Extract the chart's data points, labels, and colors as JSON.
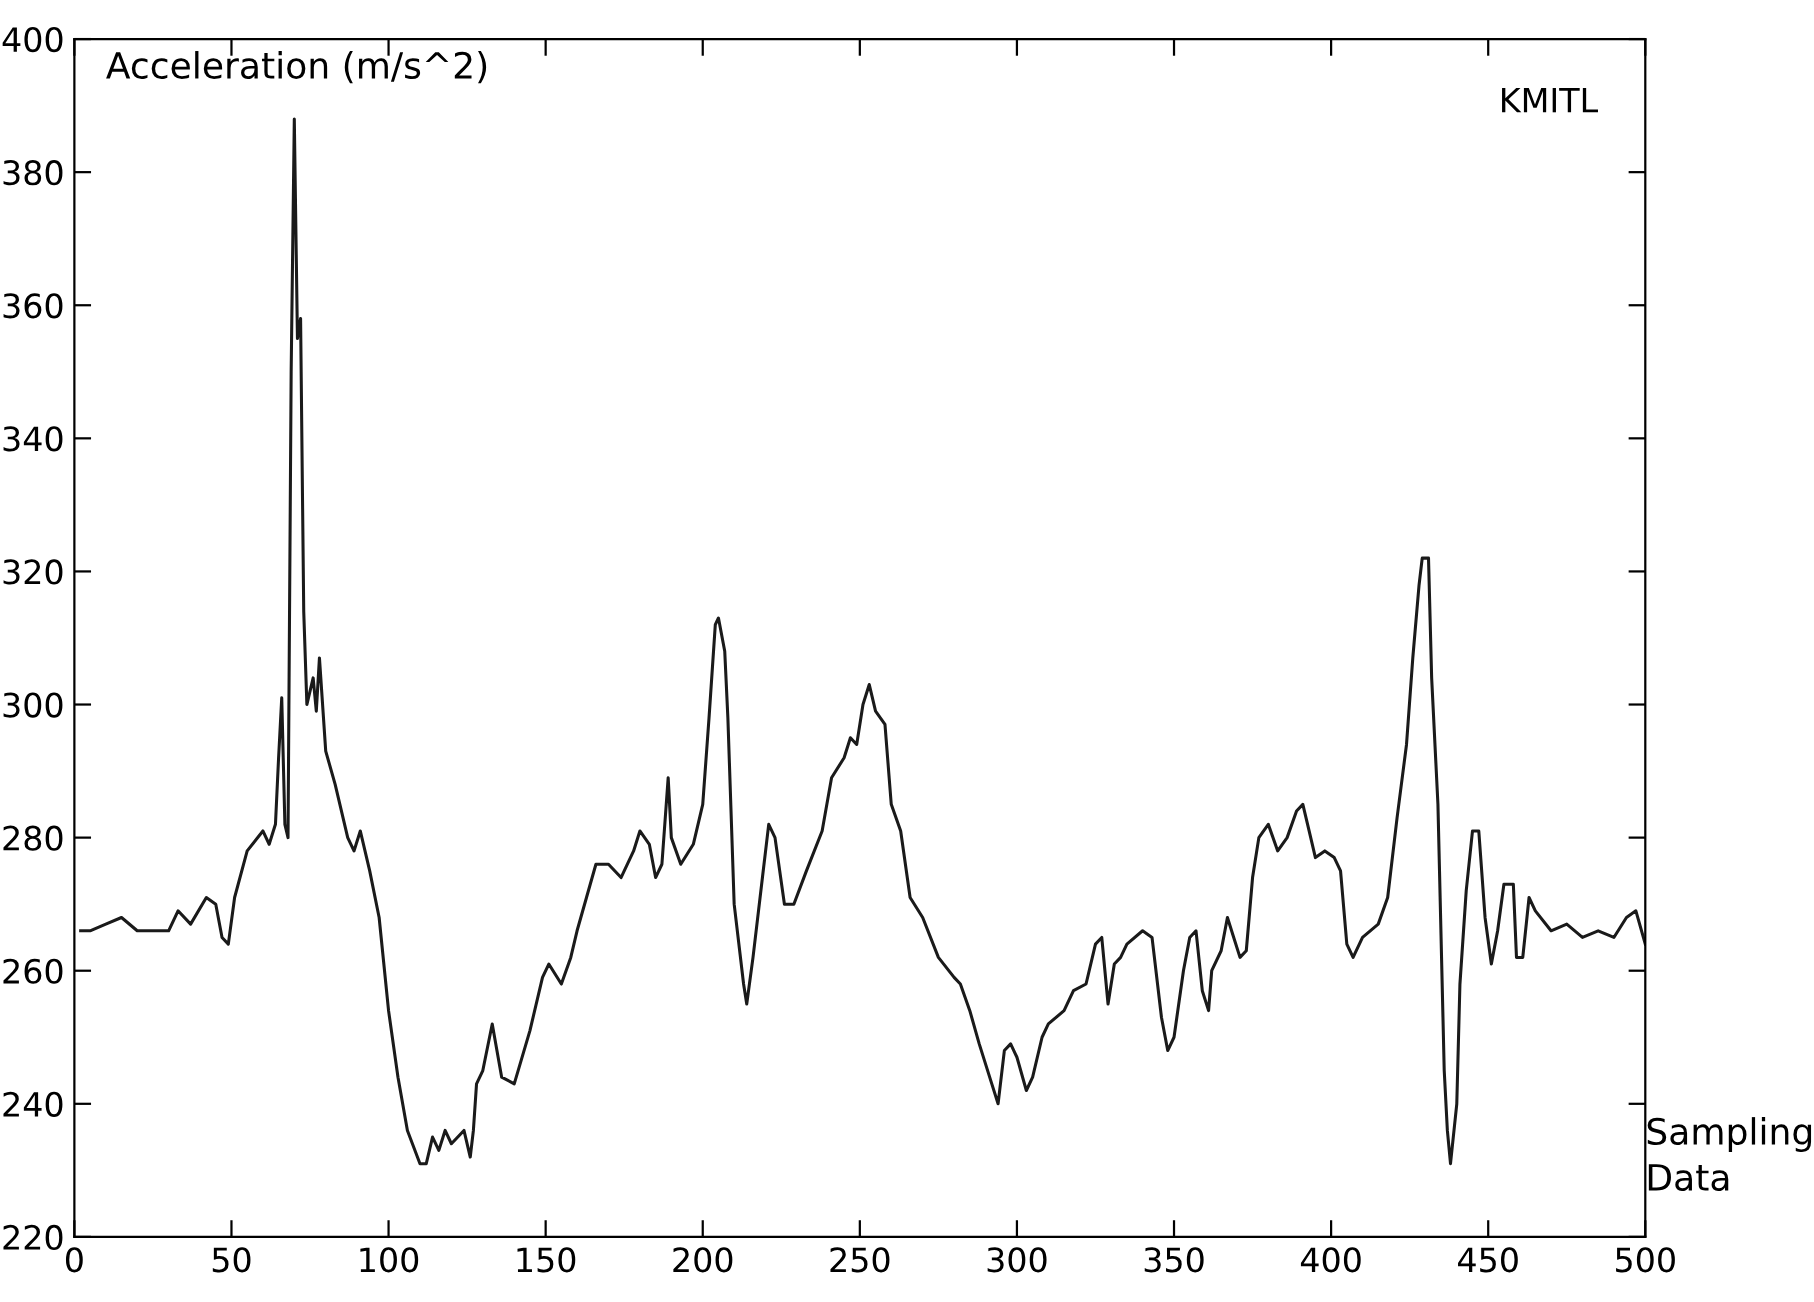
{
  "chart_data": {
    "type": "line",
    "ylabel": "Acceleration (m/s^2)",
    "xlabel": "Sampling\nData",
    "annotations": [
      "KMITL"
    ],
    "xlim": [
      0,
      500
    ],
    "ylim": [
      220,
      400
    ],
    "xticks": [
      0,
      50,
      100,
      150,
      200,
      250,
      300,
      350,
      400,
      450,
      500
    ],
    "yticks": [
      220,
      240,
      260,
      280,
      300,
      320,
      340,
      360,
      380,
      400
    ],
    "grid": false,
    "marker": "none",
    "line_style": "solid",
    "series": [
      {
        "color": "#1a1a1a",
        "x": [
          2,
          5,
          10,
          15,
          20,
          30,
          33,
          37,
          42,
          45,
          47,
          49,
          51,
          55,
          60,
          62,
          64,
          65,
          66,
          67,
          68,
          69,
          70,
          71,
          72,
          73,
          74,
          76,
          77,
          78,
          80,
          83,
          87,
          89,
          91,
          94,
          97,
          100,
          103,
          106,
          110,
          112,
          114,
          116,
          118,
          120,
          124,
          126,
          127,
          128,
          130,
          133,
          136,
          140,
          145,
          149,
          151,
          155,
          158,
          160,
          163,
          166,
          170,
          174,
          178,
          180,
          183,
          185,
          187,
          189,
          190,
          193,
          197,
          200,
          202,
          204,
          205,
          207,
          208,
          210,
          213,
          214,
          216,
          219,
          221,
          223,
          226,
          229,
          233,
          238,
          241,
          245,
          247,
          249,
          251,
          253,
          255,
          258,
          260,
          263,
          266,
          270,
          275,
          280,
          282,
          285,
          288,
          292,
          294,
          296,
          298,
          300,
          303,
          305,
          308,
          310,
          315,
          318,
          322,
          325,
          327,
          329,
          331,
          333,
          335,
          340,
          343,
          346,
          348,
          350,
          353,
          355,
          357,
          359,
          361,
          362,
          365,
          367,
          369,
          371,
          373,
          375,
          377,
          380,
          383,
          386,
          389,
          391,
          393,
          395,
          398,
          401,
          403,
          405,
          407,
          410,
          415,
          418,
          421,
          424,
          426,
          428,
          429,
          431,
          432,
          434,
          436,
          437,
          438,
          440,
          441,
          443,
          445,
          447,
          449,
          451,
          453,
          455,
          458,
          459,
          461,
          463,
          465,
          470,
          475,
          480,
          485,
          490,
          494,
          497,
          500
        ],
        "values": [
          266,
          266,
          267,
          268,
          266,
          266,
          269,
          267,
          271,
          270,
          265,
          264,
          271,
          278,
          281,
          279,
          282,
          292,
          301,
          282,
          280,
          350,
          388,
          355,
          358,
          314,
          300,
          304,
          299,
          307,
          293,
          288,
          280,
          278,
          281,
          275,
          268,
          254,
          244,
          236,
          231,
          231,
          235,
          233,
          236,
          234,
          236,
          232,
          236,
          243,
          245,
          252,
          244,
          243,
          251,
          259,
          261,
          258,
          262,
          266,
          271,
          276,
          276,
          274,
          278,
          281,
          279,
          274,
          276,
          289,
          280,
          276,
          279,
          285,
          298,
          312,
          313,
          308,
          298,
          270,
          258,
          255,
          262,
          274,
          282,
          280,
          270,
          270,
          275,
          281,
          289,
          292,
          295,
          294,
          300,
          303,
          299,
          297,
          285,
          281,
          271,
          268,
          262,
          259,
          258,
          254,
          249,
          243,
          240,
          248,
          249,
          247,
          242,
          244,
          250,
          252,
          254,
          257,
          258,
          264,
          265,
          255,
          261,
          262,
          264,
          266,
          265,
          253,
          248,
          250,
          260,
          265,
          266,
          257,
          254,
          260,
          263,
          268,
          265,
          262,
          263,
          274,
          280,
          282,
          278,
          280,
          284,
          285,
          281,
          277,
          278,
          277,
          275,
          264,
          262,
          265,
          267,
          271,
          283,
          294,
          307,
          318,
          322,
          322,
          304,
          285,
          245,
          236,
          231,
          240,
          258,
          272,
          281,
          281,
          268,
          261,
          266,
          273,
          273,
          262,
          262,
          271,
          269,
          266,
          267,
          265,
          266,
          265,
          268,
          269,
          264
        ]
      }
    ]
  }
}
